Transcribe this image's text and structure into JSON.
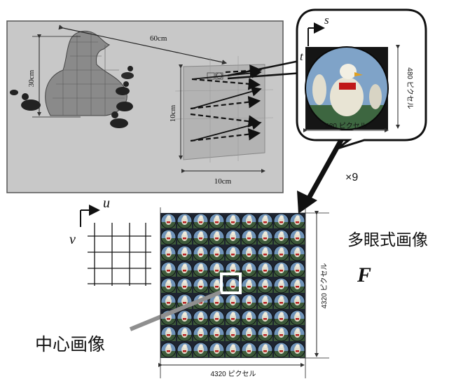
{
  "scene": {
    "dim_distance": "60cm",
    "dim_object_height": "30cm",
    "dim_plane_width": "10cm",
    "dim_plane_height": "10cm"
  },
  "elemental_image": {
    "axis_s": "s",
    "axis_t": "t",
    "width_label": "480 ピクセル",
    "height_label": "480 ピクセル"
  },
  "multiply_label": "×9",
  "grid_axes": {
    "axis_u": "u",
    "axis_v": "v"
  },
  "integral_image": {
    "title": "多眼式画像",
    "symbol": "F",
    "width_label": "4320 ピクセル",
    "height_label": "4320 ピクセル",
    "tiles_per_side": 9,
    "center_label": "中心画像"
  },
  "colors": {
    "scene_bg": "#c8c8c8",
    "scene_border": "#555555",
    "dash_arrow": "#111111",
    "tile_bg": "#1e2430",
    "sky": "#6f93b8",
    "center_box": "#ffffff",
    "pointer": "#8f8f8f"
  }
}
